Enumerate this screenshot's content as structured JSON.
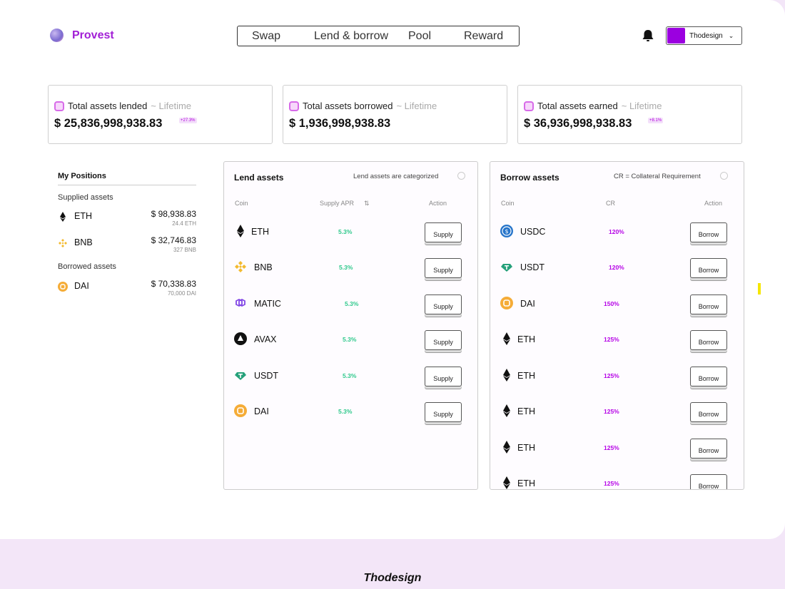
{
  "header": {
    "brand": "Provest",
    "nav": [
      "Swap",
      "Lend & borrow",
      "Pool",
      "Reward"
    ],
    "account_name": "Thodesign",
    "accent": "#a21fd6"
  },
  "stats": [
    {
      "label": "Total assets lended",
      "suffix": "~ Lifetime",
      "amount": "$ 25,836,998,938.83",
      "badge": "+27.3%"
    },
    {
      "label": "Total assets borrowed",
      "suffix": "~ Lifetime",
      "amount": "$ 1,936,998,938.83",
      "badge": ""
    },
    {
      "label": "Total assets earned",
      "suffix": "~ Lifetime",
      "amount": "$ 36,936,998,938.83",
      "badge": "+8.1%"
    }
  ],
  "positions": {
    "title": "My Positions",
    "supplied_label": "Supplied assets",
    "supplied": [
      {
        "symbol": "ETH",
        "value": "$ 98,938.83",
        "qty": "24.4 ETH",
        "icon": "eth-icon"
      },
      {
        "symbol": "BNB",
        "value": "$ 32,746.83",
        "qty": "327 BNB",
        "icon": "bnb-icon"
      }
    ],
    "borrowed_label": "Borrowed assets",
    "borrowed": [
      {
        "symbol": "DAI",
        "value": "$ 70,338.83",
        "qty": "70,000 DAI",
        "icon": "dai-icon"
      }
    ]
  },
  "lend": {
    "title": "Lend assets",
    "note": "Lend assets are categorized",
    "col_coin": "Coin",
    "col_rate": "Supply APR",
    "col_action": "Action",
    "rows": [
      {
        "coin": "ETH",
        "rate": "5.3%",
        "action": "Supply",
        "icon": "eth-icon"
      },
      {
        "coin": "BNB",
        "rate": "5.3%",
        "action": "Supply",
        "icon": "bnb-icon"
      },
      {
        "coin": "MATIC",
        "rate": "5.3%",
        "action": "Supply",
        "icon": "matic-icon"
      },
      {
        "coin": "AVAX",
        "rate": "5.3%",
        "action": "Supply",
        "icon": "avax-icon"
      },
      {
        "coin": "USDT",
        "rate": "5.3%",
        "action": "Supply",
        "icon": "usdt-icon"
      },
      {
        "coin": "DAI",
        "rate": "5.3%",
        "action": "Supply",
        "icon": "dai-icon"
      }
    ]
  },
  "borrow": {
    "title": "Borrow assets",
    "note": "CR = Collateral Requirement",
    "col_coin": "Coin",
    "col_rate": "CR",
    "col_action": "Action",
    "rows": [
      {
        "coin": "USDC",
        "rate": "120%",
        "action": "Borrow",
        "icon": "usdc-icon"
      },
      {
        "coin": "USDT",
        "rate": "120%",
        "action": "Borrow",
        "icon": "usdt-icon"
      },
      {
        "coin": "DAI",
        "rate": "150%",
        "action": "Borrow",
        "icon": "dai-icon"
      },
      {
        "coin": "ETH",
        "rate": "125%",
        "action": "Borrow",
        "icon": "eth-icon"
      },
      {
        "coin": "ETH",
        "rate": "125%",
        "action": "Borrow",
        "icon": "eth-icon"
      },
      {
        "coin": "ETH",
        "rate": "125%",
        "action": "Borrow",
        "icon": "eth-icon"
      },
      {
        "coin": "ETH",
        "rate": "125%",
        "action": "Borrow",
        "icon": "eth-icon"
      },
      {
        "coin": "ETH",
        "rate": "125%",
        "action": "Borrow",
        "icon": "eth-icon"
      }
    ]
  },
  "footer": {
    "brand": "Thodesign"
  }
}
